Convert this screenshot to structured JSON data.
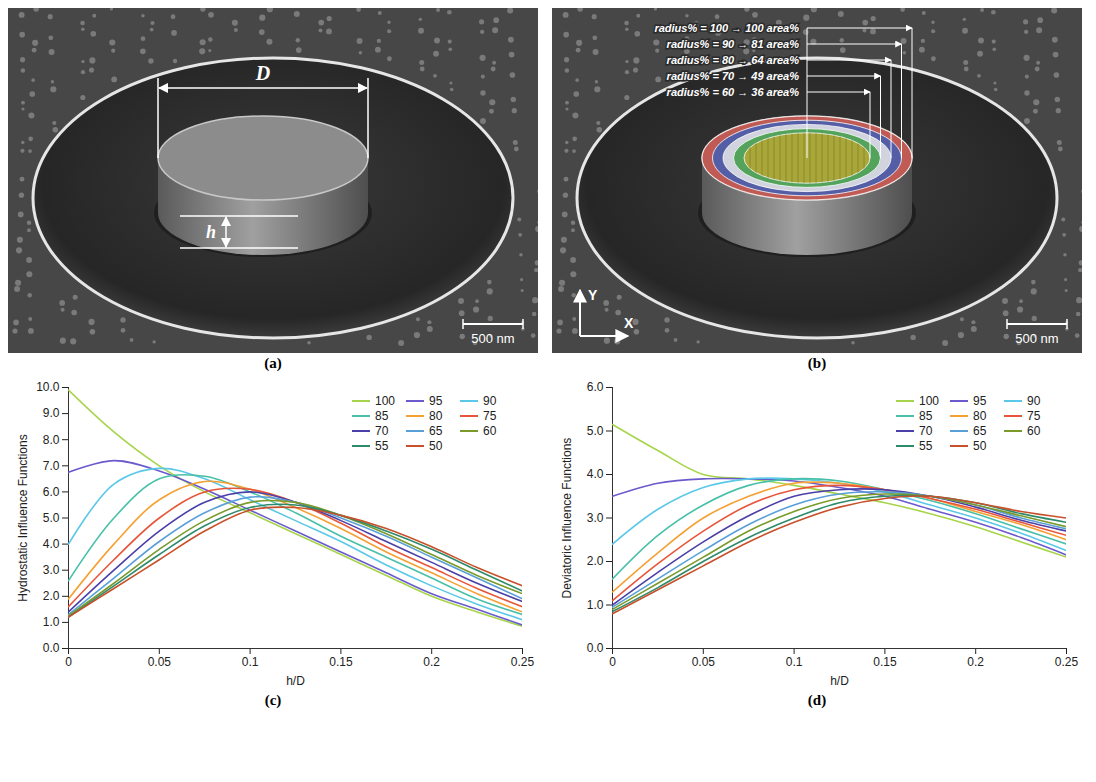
{
  "images": [
    {
      "caption": "(a)",
      "dimension_labels": {
        "diameter": "D",
        "height": "h"
      },
      "scale_bar": "500 nm"
    },
    {
      "caption": "(b)",
      "rings": [
        {
          "label": "radius% = 100 → 100 area%",
          "radius_percent": 100,
          "color": "#c8524a"
        },
        {
          "label": "radius% = 90 → 81 area%",
          "radius_percent": 90,
          "color": "#3f5fb5"
        },
        {
          "label": "radius% = 80 → 64 area%",
          "radius_percent": 80,
          "color": "#e8e8e8"
        },
        {
          "label": "radius% = 70 → 49 area%",
          "radius_percent": 70,
          "color": "#3e9a45"
        },
        {
          "label": "radius% = 60 → 36 area%",
          "radius_percent": 60,
          "color": "#b8a830"
        }
      ],
      "axis_labels": {
        "x": "X",
        "y": "Y"
      },
      "scale_bar": "500 nm"
    }
  ],
  "chart_data": [
    {
      "type": "line",
      "caption": "(c)",
      "xlabel": "h/D",
      "ylabel": "Hydrostatic Influence Functions",
      "xlim": [
        0,
        0.25
      ],
      "ylim": [
        0,
        10
      ],
      "xticks": [
        0,
        0.05,
        0.1,
        0.15,
        0.2,
        0.25
      ],
      "yticks": [
        {
          "value": 0,
          "label": "0.0"
        },
        {
          "value": 1,
          "label": "1.0"
        },
        {
          "value": 2,
          "label": "2.0"
        },
        {
          "value": 3,
          "label": "3.0"
        },
        {
          "value": 4,
          "label": "4.0"
        },
        {
          "value": 5,
          "label": "5.0"
        },
        {
          "value": 6,
          "label": "6.0"
        },
        {
          "value": 7,
          "label": "7.0"
        },
        {
          "value": 8,
          "label": "8.0"
        },
        {
          "value": 9,
          "label": "9.0"
        },
        {
          "value": 10,
          "label": "10.0"
        }
      ],
      "grid": false,
      "legend": "top-right",
      "x": [
        0,
        0.025,
        0.05,
        0.075,
        0.1,
        0.125,
        0.15,
        0.175,
        0.2,
        0.225,
        0.25
      ],
      "series": [
        {
          "name": "100",
          "color": "#a6d54a",
          "values": [
            9.9,
            8.3,
            7.0,
            6.0,
            5.2,
            4.4,
            3.6,
            2.8,
            2.0,
            1.4,
            0.85
          ]
        },
        {
          "name": "95",
          "color": "#6a5acd",
          "values": [
            6.75,
            7.2,
            6.8,
            6.1,
            5.3,
            4.5,
            3.7,
            2.9,
            2.1,
            1.5,
            0.9
          ]
        },
        {
          "name": "90",
          "color": "#5bc8e8",
          "values": [
            4.0,
            6.3,
            6.9,
            6.5,
            5.7,
            4.9,
            4.1,
            3.2,
            2.4,
            1.7,
            1.1
          ]
        },
        {
          "name": "85",
          "color": "#48c0a8",
          "values": [
            2.6,
            5.0,
            6.5,
            6.6,
            6.0,
            5.2,
            4.3,
            3.5,
            2.7,
            1.9,
            1.3
          ]
        },
        {
          "name": "80",
          "color": "#f5a033",
          "values": [
            1.9,
            4.0,
            5.7,
            6.4,
            6.1,
            5.4,
            4.6,
            3.7,
            2.9,
            2.1,
            1.4
          ]
        },
        {
          "name": "75",
          "color": "#e8553a",
          "values": [
            1.6,
            3.4,
            5.0,
            6.0,
            6.1,
            5.6,
            4.8,
            3.9,
            3.1,
            2.3,
            1.6
          ]
        },
        {
          "name": "70",
          "color": "#4b3fa8",
          "values": [
            1.4,
            3.0,
            4.5,
            5.6,
            6.0,
            5.6,
            4.9,
            4.1,
            3.3,
            2.5,
            1.8
          ]
        },
        {
          "name": "65",
          "color": "#5aa0d8",
          "values": [
            1.3,
            2.7,
            4.1,
            5.2,
            5.8,
            5.6,
            5.0,
            4.3,
            3.5,
            2.7,
            1.9
          ]
        },
        {
          "name": "60",
          "color": "#7a9a2a",
          "values": [
            1.25,
            2.5,
            3.8,
            4.9,
            5.6,
            5.6,
            5.1,
            4.4,
            3.6,
            2.8,
            2.1
          ]
        },
        {
          "name": "55",
          "color": "#2e8b6a",
          "values": [
            1.2,
            2.4,
            3.6,
            4.7,
            5.4,
            5.5,
            5.1,
            4.5,
            3.8,
            3.0,
            2.2
          ]
        },
        {
          "name": "50",
          "color": "#c8502a",
          "values": [
            1.2,
            2.3,
            3.4,
            4.5,
            5.3,
            5.4,
            5.1,
            4.6,
            3.9,
            3.1,
            2.4
          ]
        }
      ]
    },
    {
      "type": "line",
      "caption": "(d)",
      "xlabel": "h/D",
      "ylabel": "Deviatoric Influence Functions",
      "xlim": [
        0,
        0.25
      ],
      "ylim": [
        0,
        6
      ],
      "xticks": [
        0,
        0.05,
        0.1,
        0.15,
        0.2,
        0.25
      ],
      "yticks": [
        {
          "value": 0,
          "label": "0.0"
        },
        {
          "value": 1,
          "label": "1.0"
        },
        {
          "value": 2,
          "label": "2.0"
        },
        {
          "value": 3,
          "label": "3.0"
        },
        {
          "value": 4,
          "label": "4.0"
        },
        {
          "value": 5,
          "label": "5.0"
        },
        {
          "value": 6,
          "label": "6.0"
        }
      ],
      "grid": false,
      "legend": "top-right",
      "x": [
        0,
        0.025,
        0.05,
        0.075,
        0.1,
        0.125,
        0.15,
        0.175,
        0.2,
        0.225,
        0.25
      ],
      "series": [
        {
          "name": "100",
          "color": "#a6d54a",
          "values": [
            5.15,
            4.55,
            4.0,
            3.9,
            3.75,
            3.55,
            3.35,
            3.1,
            2.8,
            2.45,
            2.1
          ]
        },
        {
          "name": "95",
          "color": "#6a5acd",
          "values": [
            3.5,
            3.8,
            3.9,
            3.9,
            3.85,
            3.7,
            3.5,
            3.2,
            2.9,
            2.55,
            2.15
          ]
        },
        {
          "name": "90",
          "color": "#5bc8e8",
          "values": [
            2.4,
            3.2,
            3.7,
            3.9,
            3.9,
            3.8,
            3.6,
            3.3,
            3.0,
            2.65,
            2.25
          ]
        },
        {
          "name": "85",
          "color": "#48c0a8",
          "values": [
            1.6,
            2.6,
            3.3,
            3.75,
            3.9,
            3.85,
            3.65,
            3.4,
            3.1,
            2.75,
            2.4
          ]
        },
        {
          "name": "80",
          "color": "#f5a033",
          "values": [
            1.3,
            2.2,
            3.0,
            3.5,
            3.8,
            3.8,
            3.65,
            3.45,
            3.15,
            2.85,
            2.5
          ]
        },
        {
          "name": "75",
          "color": "#e8553a",
          "values": [
            1.1,
            1.95,
            2.7,
            3.3,
            3.65,
            3.75,
            3.65,
            3.45,
            3.2,
            2.9,
            2.6
          ]
        },
        {
          "name": "70",
          "color": "#4b3fa8",
          "values": [
            1.0,
            1.75,
            2.45,
            3.05,
            3.5,
            3.65,
            3.65,
            3.5,
            3.25,
            2.95,
            2.7
          ]
        },
        {
          "name": "65",
          "color": "#5aa0d8",
          "values": [
            0.95,
            1.6,
            2.25,
            2.85,
            3.3,
            3.55,
            3.6,
            3.5,
            3.3,
            3.0,
            2.75
          ]
        },
        {
          "name": "60",
          "color": "#7a9a2a",
          "values": [
            0.9,
            1.5,
            2.1,
            2.7,
            3.15,
            3.45,
            3.55,
            3.5,
            3.3,
            3.05,
            2.8
          ]
        },
        {
          "name": "55",
          "color": "#2e8b6a",
          "values": [
            0.85,
            1.4,
            2.0,
            2.55,
            3.0,
            3.35,
            3.5,
            3.5,
            3.35,
            3.1,
            2.9
          ]
        },
        {
          "name": "50",
          "color": "#c8502a",
          "values": [
            0.8,
            1.35,
            1.9,
            2.45,
            2.9,
            3.25,
            3.45,
            3.5,
            3.35,
            3.15,
            3.0
          ]
        }
      ]
    }
  ]
}
